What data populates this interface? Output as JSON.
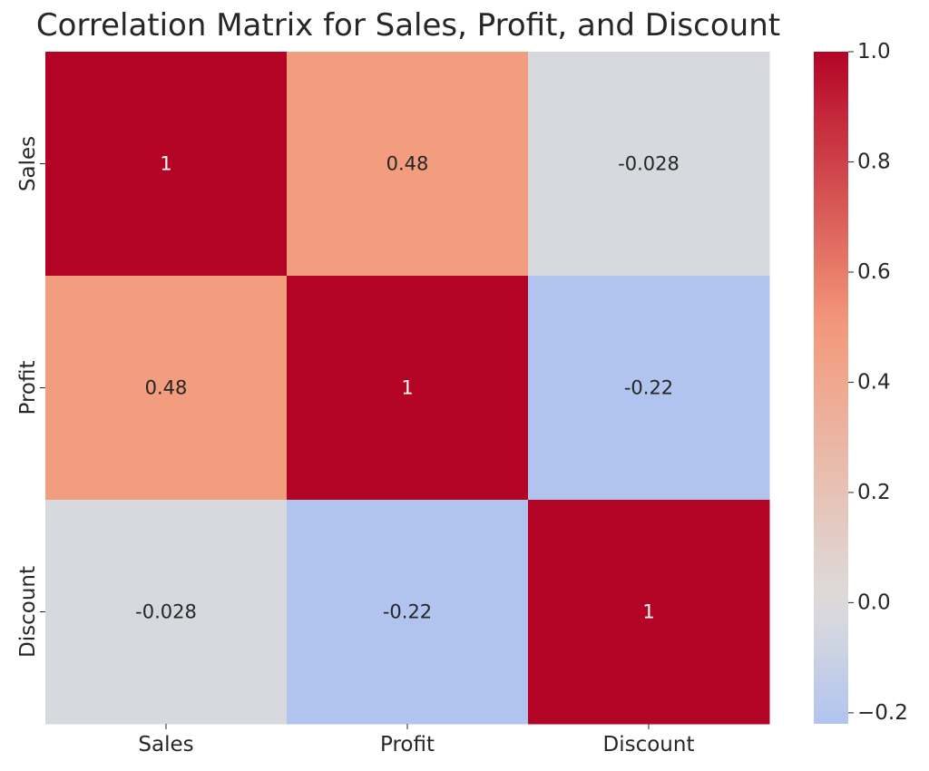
{
  "chart_data": {
    "type": "heatmap",
    "title": "Correlation Matrix for Sales, Profit, and Discount",
    "x_categories": [
      "Sales",
      "Profit",
      "Discount"
    ],
    "y_categories": [
      "Sales",
      "Profit",
      "Discount"
    ],
    "values": [
      [
        1,
        0.48,
        -0.028
      ],
      [
        0.48,
        1,
        -0.22
      ],
      [
        -0.028,
        -0.22,
        1
      ]
    ],
    "value_labels": [
      [
        "1",
        "0.48",
        "-0.028"
      ],
      [
        "0.48",
        "1",
        "-0.22"
      ],
      [
        "-0.028",
        "-0.22",
        "1"
      ]
    ],
    "colormap": "coolwarm",
    "colorbar": {
      "range": [
        -0.22,
        1.0
      ],
      "ticks": [
        -0.2,
        0.0,
        0.2,
        0.4,
        0.6,
        0.8,
        1.0
      ],
      "tick_labels": [
        "−0.2",
        "0.0",
        "0.2",
        "0.4",
        "0.6",
        "0.8",
        "1.0"
      ]
    },
    "colors": {
      "high": "#b40426",
      "mid": "#dddcdc",
      "low": "#bfd3f6"
    }
  }
}
